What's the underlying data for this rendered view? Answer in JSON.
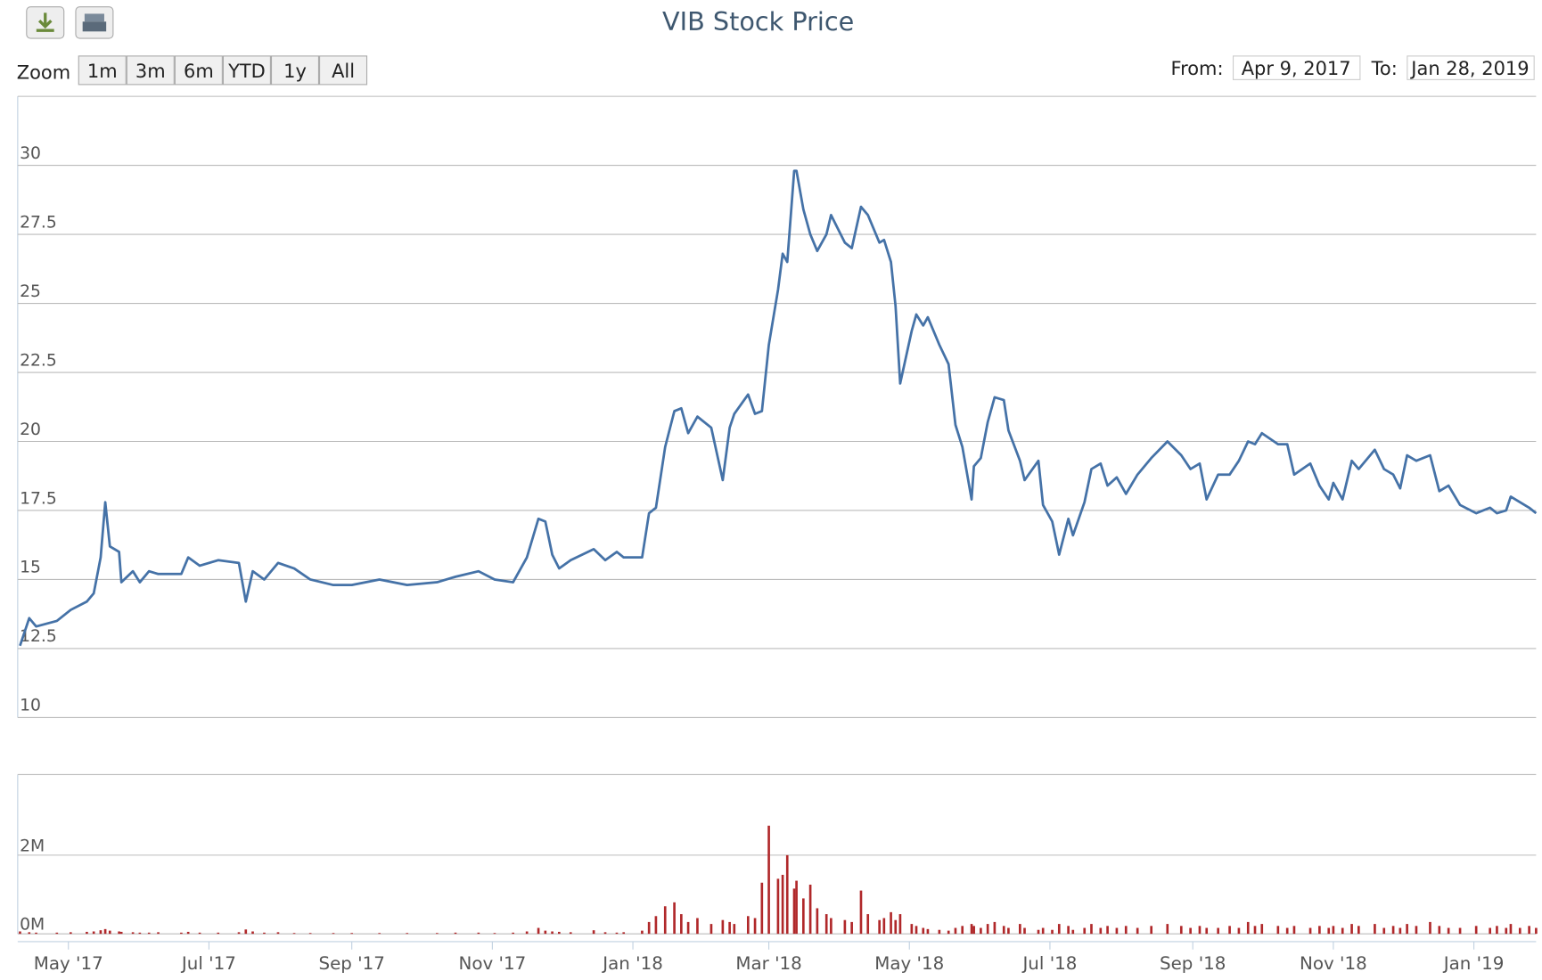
{
  "ui": {
    "zoom_label": "Zoom",
    "zoom_buttons": [
      "1m",
      "3m",
      "6m",
      "YTD",
      "1y",
      "All"
    ],
    "from_label": "From:",
    "from_value": "Apr 9, 2017",
    "to_label": "To:",
    "to_value": "Jan 28, 2019"
  },
  "chart_data": {
    "type": "line",
    "title": "VIB Stock Price",
    "x": [
      "2017-04-10",
      "2017-04-14",
      "2017-04-17",
      "2017-04-26",
      "2017-05-02",
      "2017-05-09",
      "2017-05-12",
      "2017-05-15",
      "2017-05-17",
      "2017-05-19",
      "2017-05-23",
      "2017-05-24",
      "2017-05-29",
      "2017-06-01",
      "2017-06-05",
      "2017-06-09",
      "2017-06-19",
      "2017-06-22",
      "2017-06-27",
      "2017-07-05",
      "2017-07-14",
      "2017-07-17",
      "2017-07-20",
      "2017-07-25",
      "2017-07-31",
      "2017-08-07",
      "2017-08-14",
      "2017-08-24",
      "2017-09-01",
      "2017-09-13",
      "2017-09-25",
      "2017-10-08",
      "2017-10-16",
      "2017-10-26",
      "2017-11-02",
      "2017-11-10",
      "2017-11-16",
      "2017-11-21",
      "2017-11-24",
      "2017-11-27",
      "2017-11-30",
      "2017-12-05",
      "2017-12-15",
      "2017-12-20",
      "2017-12-25",
      "2017-12-28",
      "2018-01-05",
      "2018-01-08",
      "2018-01-11",
      "2018-01-15",
      "2018-01-19",
      "2018-01-22",
      "2018-01-25",
      "2018-01-29",
      "2018-02-04",
      "2018-02-09",
      "2018-02-12",
      "2018-02-14",
      "2018-02-20",
      "2018-02-23",
      "2018-02-26",
      "2018-03-01",
      "2018-03-05",
      "2018-03-07",
      "2018-03-09",
      "2018-03-12",
      "2018-03-13",
      "2018-03-16",
      "2018-03-19",
      "2018-03-22",
      "2018-03-26",
      "2018-03-28",
      "2018-04-03",
      "2018-04-06",
      "2018-04-10",
      "2018-04-13",
      "2018-04-18",
      "2018-04-20",
      "2018-04-23",
      "2018-04-25",
      "2018-04-27",
      "2018-05-02",
      "2018-05-04",
      "2018-05-07",
      "2018-05-09",
      "2018-05-14",
      "2018-05-18",
      "2018-05-21",
      "2018-05-24",
      "2018-05-28",
      "2018-05-29",
      "2018-06-01",
      "2018-06-04",
      "2018-06-07",
      "2018-06-11",
      "2018-06-13",
      "2018-06-18",
      "2018-06-20",
      "2018-06-26",
      "2018-06-28",
      "2018-07-02",
      "2018-07-05",
      "2018-07-09",
      "2018-07-11",
      "2018-07-16",
      "2018-07-19",
      "2018-07-23",
      "2018-07-26",
      "2018-07-30",
      "2018-08-03",
      "2018-08-08",
      "2018-08-14",
      "2018-08-21",
      "2018-08-27",
      "2018-08-31",
      "2018-09-04",
      "2018-09-07",
      "2018-09-12",
      "2018-09-17",
      "2018-09-21",
      "2018-09-25",
      "2018-09-28",
      "2018-10-01",
      "2018-10-08",
      "2018-10-12",
      "2018-10-15",
      "2018-10-22",
      "2018-10-26",
      "2018-10-30",
      "2018-11-01",
      "2018-11-05",
      "2018-11-09",
      "2018-11-12",
      "2018-11-19",
      "2018-11-23",
      "2018-11-27",
      "2018-11-30",
      "2018-12-03",
      "2018-12-07",
      "2018-12-13",
      "2018-12-17",
      "2018-12-21",
      "2018-12-26",
      "2019-01-02",
      "2019-01-08",
      "2019-01-11",
      "2019-01-15",
      "2019-01-17",
      "2019-01-21",
      "2019-01-25",
      "2019-01-28"
    ],
    "series": [
      {
        "type": "line",
        "color": "#4572a7",
        "values": [
          12.6,
          13.6,
          13.3,
          13.5,
          13.9,
          14.2,
          14.5,
          15.8,
          17.8,
          16.2,
          16.0,
          14.9,
          15.3,
          14.9,
          15.3,
          15.2,
          15.2,
          15.8,
          15.5,
          15.7,
          15.6,
          14.2,
          15.3,
          15.0,
          15.6,
          15.4,
          15.0,
          14.8,
          14.8,
          15.0,
          14.8,
          14.9,
          15.1,
          15.3,
          15.0,
          14.9,
          15.8,
          17.2,
          17.1,
          15.9,
          15.4,
          15.7,
          16.1,
          15.7,
          16.0,
          15.8,
          15.8,
          17.4,
          17.6,
          19.8,
          21.1,
          21.2,
          20.3,
          20.9,
          20.5,
          18.6,
          20.5,
          21.0,
          21.7,
          21.0,
          21.1,
          23.5,
          25.5,
          26.8,
          26.5,
          29.8,
          29.8,
          28.4,
          27.5,
          26.9,
          27.5,
          28.2,
          27.2,
          27.0,
          28.5,
          28.2,
          27.2,
          27.3,
          26.5,
          24.9,
          22.1,
          24.0,
          24.6,
          24.2,
          24.5,
          23.5,
          22.8,
          20.6,
          19.8,
          17.9,
          19.1,
          19.4,
          20.7,
          21.6,
          21.5,
          20.4,
          19.3,
          18.6,
          19.3,
          17.7,
          17.1,
          15.9,
          17.2,
          16.6,
          17.8,
          19.0,
          19.2,
          18.4,
          18.7,
          18.1,
          18.8,
          19.4,
          20.0,
          19.5,
          19.0,
          19.2,
          17.9,
          18.8,
          18.8,
          19.3,
          20.0,
          19.9,
          20.3,
          19.9,
          19.9,
          18.8,
          19.2,
          18.4,
          17.9,
          18.5,
          17.9,
          19.3,
          19.0,
          19.7,
          19.0,
          18.8,
          18.3,
          19.5,
          19.3,
          19.5,
          18.2,
          18.4,
          17.7,
          17.4,
          17.6,
          17.4,
          17.5,
          18.0,
          17.8,
          17.6,
          17.4
        ]
      },
      {
        "type": "bar",
        "axis": "y2",
        "color": "#b0282a",
        "values": [
          60000,
          40000,
          30000,
          30000,
          40000,
          50000,
          60000,
          90000,
          120000,
          80000,
          60000,
          50000,
          40000,
          30000,
          30000,
          40000,
          30000,
          50000,
          30000,
          30000,
          40000,
          110000,
          60000,
          30000,
          40000,
          20000,
          20000,
          20000,
          20000,
          20000,
          20000,
          20000,
          30000,
          30000,
          20000,
          30000,
          60000,
          150000,
          80000,
          60000,
          50000,
          40000,
          90000,
          40000,
          30000,
          40000,
          80000,
          300000,
          450000,
          700000,
          800000,
          500000,
          300000,
          400000,
          250000,
          350000,
          300000,
          250000,
          450000,
          400000,
          1300000,
          2750000,
          1400000,
          1500000,
          2000000,
          1150000,
          1350000,
          900000,
          1250000,
          650000,
          500000,
          400000,
          350000,
          300000,
          1100000,
          500000,
          350000,
          400000,
          550000,
          350000,
          500000,
          250000,
          200000,
          150000,
          120000,
          100000,
          80000,
          150000,
          200000,
          250000,
          200000,
          150000,
          250000,
          300000,
          200000,
          150000,
          250000,
          150000,
          100000,
          150000,
          100000,
          250000,
          200000,
          100000,
          150000,
          250000,
          150000,
          200000,
          150000,
          200000,
          150000,
          200000,
          250000,
          200000,
          150000,
          200000,
          150000,
          150000,
          200000,
          150000,
          300000,
          200000,
          250000,
          200000,
          150000,
          200000,
          150000,
          200000,
          150000,
          200000,
          150000,
          250000,
          200000,
          250000,
          150000,
          200000,
          150000,
          250000,
          200000,
          300000,
          200000,
          150000,
          150000,
          200000,
          150000,
          200000,
          150000,
          250000,
          150000,
          200000,
          150000
        ]
      }
    ],
    "xlim": [
      "2017-04-09",
      "2019-01-28"
    ],
    "xticks": [
      {
        "value": "2017-05-01",
        "label": "May '17"
      },
      {
        "value": "2017-07-01",
        "label": "Jul '17"
      },
      {
        "value": "2017-09-01",
        "label": "Sep '17"
      },
      {
        "value": "2017-11-01",
        "label": "Nov '17"
      },
      {
        "value": "2018-01-01",
        "label": "Jan '18"
      },
      {
        "value": "2018-03-01",
        "label": "Mar '18"
      },
      {
        "value": "2018-05-01",
        "label": "May '18"
      },
      {
        "value": "2018-07-01",
        "label": "Jul '18"
      },
      {
        "value": "2018-09-01",
        "label": "Sep '18"
      },
      {
        "value": "2018-11-01",
        "label": "Nov '18"
      },
      {
        "value": "2019-01-01",
        "label": "Jan '19"
      }
    ],
    "ylim": [
      10,
      32.5
    ],
    "yticks": [
      10,
      12.5,
      15,
      17.5,
      20,
      22.5,
      25,
      27.5,
      30
    ],
    "y2lim": [
      0,
      4000000
    ],
    "y2ticks": [
      {
        "value": 0,
        "label": "0M"
      },
      {
        "value": 2000000,
        "label": "2M"
      }
    ],
    "grid": true
  }
}
